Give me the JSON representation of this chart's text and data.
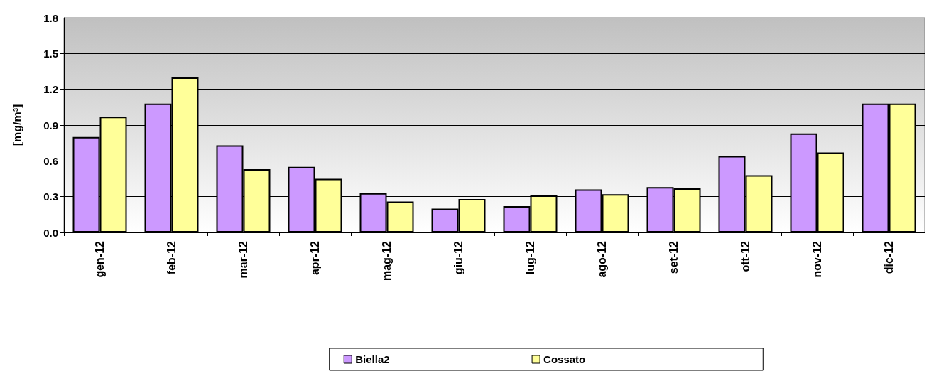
{
  "chart_data": {
    "type": "bar",
    "ylabel": "[mg/m³]",
    "categories": [
      "gen-12",
      "feb-12",
      "mar-12",
      "apr-12",
      "mag-12",
      "giu-12",
      "lug-12",
      "ago-12",
      "set-12",
      "ott-12",
      "nov-12",
      "dic-12"
    ],
    "series": [
      {
        "name": "Biella2",
        "color": "#cc99ff",
        "values": [
          0.8,
          1.08,
          0.73,
          0.55,
          0.33,
          0.2,
          0.22,
          0.36,
          0.38,
          0.64,
          0.83,
          1.08
        ]
      },
      {
        "name": "Cossato",
        "color": "#ffff99",
        "values": [
          0.97,
          1.3,
          0.53,
          0.45,
          0.26,
          0.28,
          0.31,
          0.32,
          0.37,
          0.48,
          0.67,
          1.08
        ]
      }
    ],
    "ylim": [
      0,
      1.8
    ],
    "yticks": [
      {
        "value": 0,
        "label": "0.0"
      },
      0.3,
      0.6,
      0.9,
      1.2,
      1.5,
      1.8
    ],
    "grid": "y",
    "legend": "bottom"
  }
}
